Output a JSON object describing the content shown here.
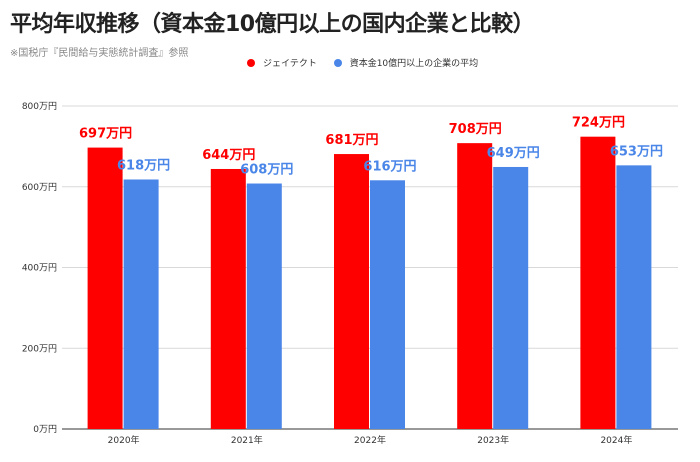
{
  "chart_data": {
    "type": "bar",
    "title": "平均年収推移（資本金10億円以上の国内企業と比較）",
    "subtitle": "※国税庁『民間給与実態統計調査』参照",
    "categories": [
      "2020年",
      "2021年",
      "2022年",
      "2023年",
      "2024年"
    ],
    "series": [
      {
        "name": "ジェイテクト",
        "color": "#ff0000",
        "values": [
          697,
          644,
          681,
          708,
          724
        ],
        "labels": [
          "697万円",
          "644万円",
          "681万円",
          "708万円",
          "724万円"
        ]
      },
      {
        "name": "資本金10億円以上の企業の平均",
        "color": "#4a86e8",
        "values": [
          618,
          608,
          616,
          649,
          653
        ],
        "labels": [
          "618万円",
          "608万円",
          "616万円",
          "649万円",
          "653万円"
        ]
      }
    ],
    "ylim": [
      0,
      800
    ],
    "yticks": [
      0,
      200,
      400,
      600,
      800
    ],
    "ytick_labels": [
      "0万円",
      "200万円",
      "400万円",
      "600万円",
      "800万円"
    ],
    "grid": true,
    "legend_position": "top",
    "xlabel": "",
    "ylabel": ""
  }
}
